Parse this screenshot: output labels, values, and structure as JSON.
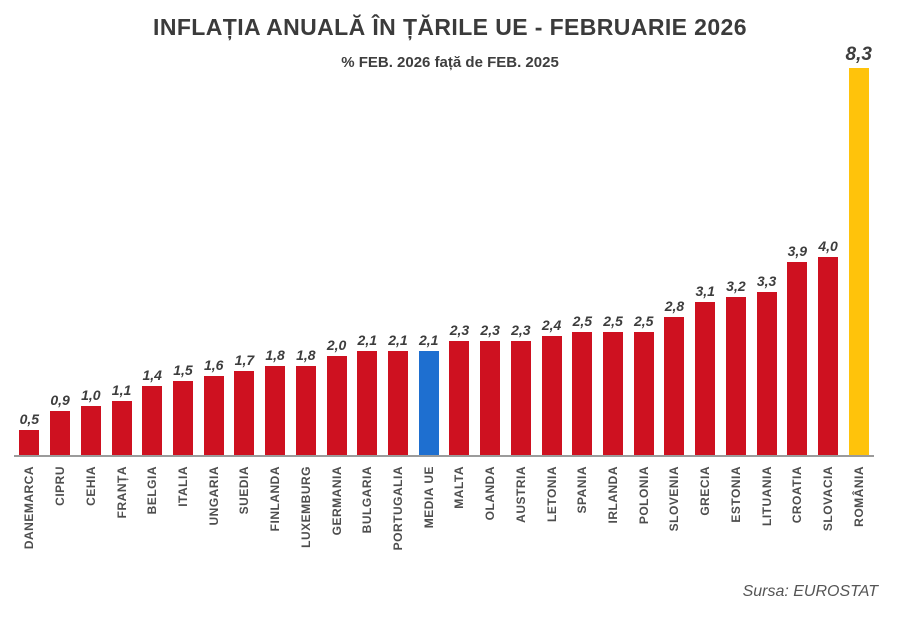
{
  "header": {
    "title": "INFLAȚIA ANUALĂ ÎN ȚĂRILE UE - FEBRUARIE 2026",
    "subtitle": "% FEB. 2026 față de FEB. 2025"
  },
  "footer": {
    "source": "Sursa: EUROSTAT"
  },
  "colors": {
    "bar_red": "#CE1120",
    "bar_blue": "#1E6FD0",
    "bar_yellow": "#FFC30B",
    "axis": "#9B9B9B",
    "title_text": "#3B3B3B",
    "value_text": "#3D3D3D",
    "category_text": "#4D4D4D"
  },
  "chart_data": {
    "type": "bar",
    "title": "INFLAȚIA ANUALĂ ÎN ȚĂRILE UE - FEBRUARIE 2026",
    "subtitle": "% FEB. 2026 față de FEB. 2025",
    "source": "Sursa: EUROSTAT",
    "xlabel": "",
    "ylabel": "",
    "ylim": [
      0,
      8.3
    ],
    "grid": false,
    "legend": false,
    "categories": [
      "DANEMARCA",
      "CIPRU",
      "CEHIA",
      "FRANȚA",
      "BELGIA",
      "ITALIA",
      "UNGARIA",
      "SUEDIA",
      "FINLANDA",
      "LUXEMBURG",
      "GERMANIA",
      "BULGARIA",
      "PORTUGALIA",
      "MEDIA UE",
      "MALTA",
      "OLANDA",
      "AUSTRIA",
      "LETONIA",
      "SPANIA",
      "IRLANDA",
      "POLONIA",
      "SLOVENIA",
      "GRECIA",
      "ESTONIA",
      "LITUANIA",
      "CROATIA",
      "SLOVACIA",
      "ROMÂNIA"
    ],
    "values": [
      0.5,
      0.9,
      1.0,
      1.1,
      1.4,
      1.5,
      1.6,
      1.7,
      1.8,
      1.8,
      2.0,
      2.1,
      2.1,
      2.1,
      2.3,
      2.3,
      2.3,
      2.4,
      2.5,
      2.5,
      2.5,
      2.8,
      3.1,
      3.2,
      3.3,
      3.9,
      4.0,
      8.3
    ],
    "value_labels": [
      "0,5",
      "0,9",
      "1,0",
      "1,1",
      "1,4",
      "1,5",
      "1,6",
      "1,7",
      "1,8",
      "1,8",
      "2,0",
      "2,1",
      "2,1",
      "2,1",
      "2,3",
      "2,3",
      "2,3",
      "2,4",
      "2,5",
      "2,5",
      "2,5",
      "2,8",
      "3,1",
      "3,2",
      "3,3",
      "3,9",
      "4,0",
      "8,3"
    ],
    "bar_color_keys": [
      "red",
      "red",
      "red",
      "red",
      "red",
      "red",
      "red",
      "red",
      "red",
      "red",
      "red",
      "red",
      "red",
      "blue",
      "red",
      "red",
      "red",
      "red",
      "red",
      "red",
      "red",
      "red",
      "red",
      "red",
      "red",
      "red",
      "red",
      "yellow"
    ]
  }
}
